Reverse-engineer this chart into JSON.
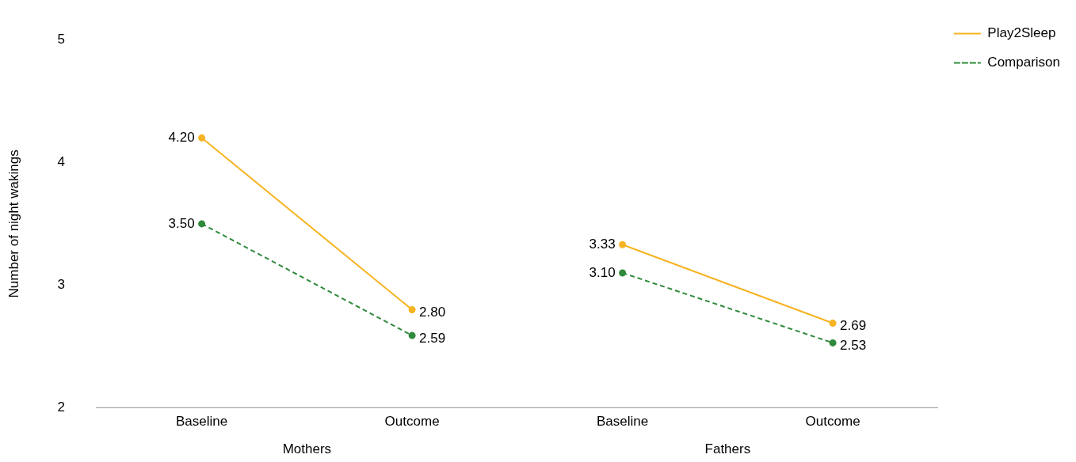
{
  "chart_data": {
    "type": "line",
    "ylabel": "Number of night wakings",
    "categories": [
      "Baseline",
      "Outcome",
      "Baseline",
      "Outcome"
    ],
    "annotations": [
      "Mothers",
      "Fathers"
    ],
    "series": [
      {
        "name": "Play2Sleep",
        "color": "#f6b322",
        "values": [
          4.2,
          2.8,
          null,
          null
        ],
        "value_labels": [
          "4.20",
          "2.80",
          null,
          null
        ]
      },
      {
        "name": "Comparison",
        "color": "#2f8a3c",
        "values": [
          3.5,
          2.59,
          null,
          null
        ],
        "value_labels": [
          "3.50",
          "2.59",
          null,
          null
        ],
        "line_style": "dashed"
      },
      {
        "color": "#f6b322",
        "values": [
          null,
          null,
          3.33,
          2.69
        ],
        "value_labels": [
          null,
          null,
          "3.33",
          "2.69"
        ]
      },
      {
        "color": "#2f8a3c",
        "values": [
          null,
          null,
          3.1,
          2.53
        ],
        "value_labels": [
          null,
          null,
          "3.10",
          "2.53"
        ],
        "line_style": "dashed"
      }
    ],
    "ylim": [
      2,
      5
    ],
    "yticks": [
      2,
      3,
      4,
      5
    ],
    "grid": false,
    "legend": "top right",
    "marker": "circle"
  }
}
